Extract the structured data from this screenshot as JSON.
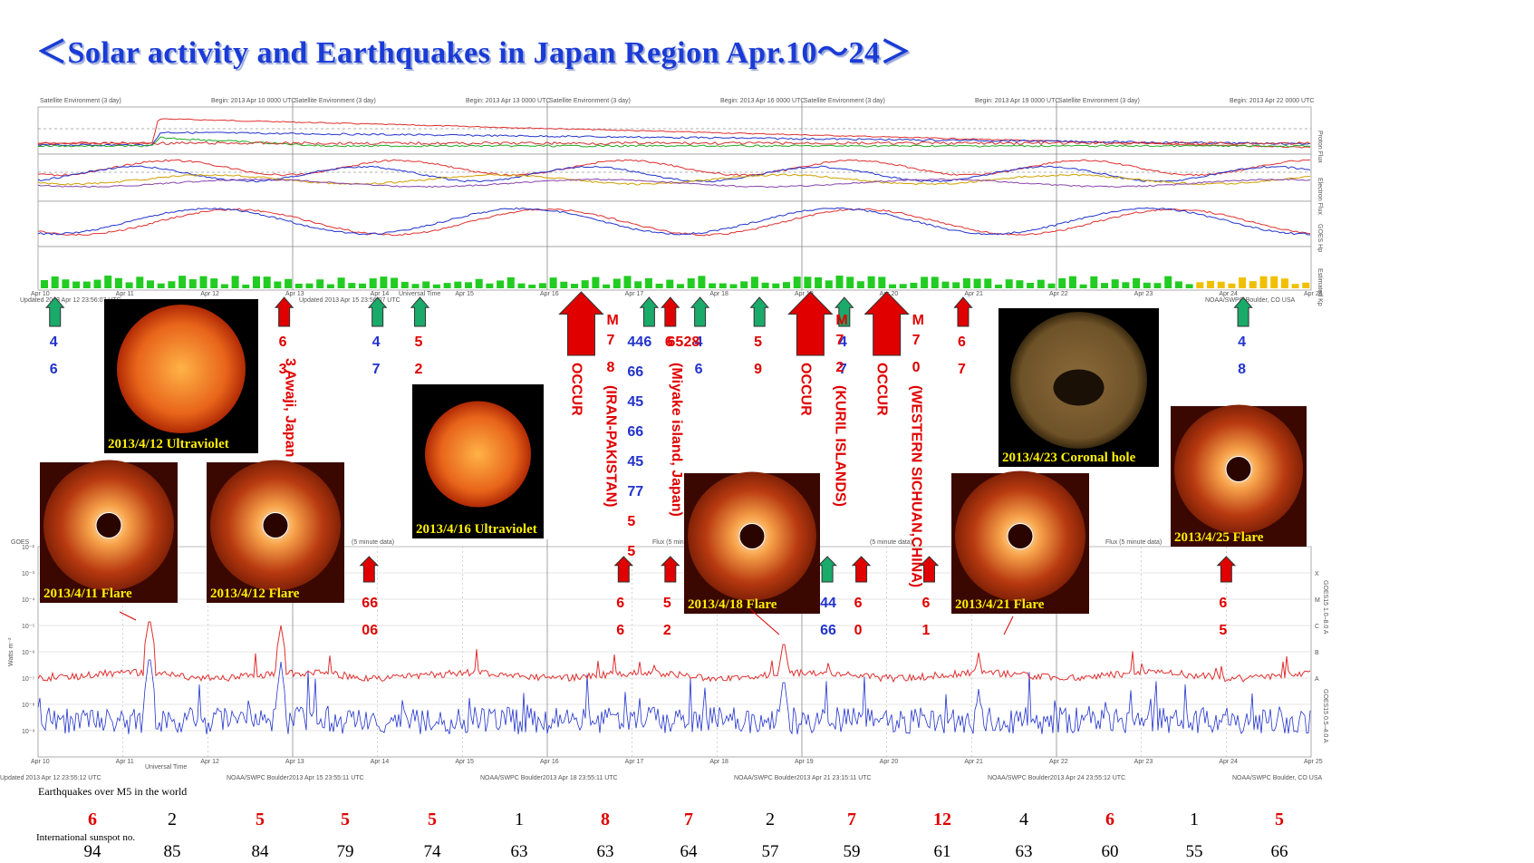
{
  "title": "＜Solar activity and Earthquakes in Japan Region Apr.10～24＞",
  "colors": {
    "blue_text": "#1a3bd6",
    "red": "#e00000",
    "green": "#1aaa6a",
    "blue": "#2233cc",
    "caption": "#ffef00"
  },
  "top_panel": {
    "headers": [
      {
        "left": "Satellite Environment (3 day)",
        "right": "Begin: 2013 Apr 10 0000 UTC"
      },
      {
        "left": "Satellite Environment (3 day)",
        "right": "Begin: 2013 Apr 13 0000 UTC"
      },
      {
        "left": "Satellite Environment (3 day)",
        "right": "Begin: 2013 Apr 16 0000 UTC"
      },
      {
        "left": "Satellite Environment (3 day)",
        "right": "Begin: 2013 Apr 19 0000 UTC"
      },
      {
        "left": "Satellite Environment (3 day)",
        "right": "Begin: 2013 Apr 22 0000 UTC"
      }
    ],
    "day_ticks": [
      "Apr 10",
      "Apr 11",
      "Apr 12",
      "Apr 13",
      "Apr 14",
      "Apr 15",
      "Apr 16",
      "Apr 17",
      "Apr 18",
      "Apr 19",
      "Apr 20",
      "Apr 21",
      "Apr 22",
      "Apr 23",
      "Apr 24",
      "Apr 25"
    ],
    "right_labels": [
      "Proton Flux",
      "Electron Flux",
      "GOES Hp",
      "Estimated Kp"
    ],
    "updated": [
      "Updated 2013 Apr 12 23:56:07 UTC",
      "Updated 2013 Apr 15 23:56:07 UTC",
      "NOAA/SWPC Boulder, CO USA"
    ],
    "universal_time": "Universal Time"
  },
  "xray_panel": {
    "header_left": "GOES",
    "header_mid": [
      "(5 minute data)",
      "Flux (5 minute data)",
      "(5 minute data)",
      "Flux (5 minute data)"
    ],
    "header_right": "Begin: 2013 Apr 22 0000 UTC",
    "ylabel": "Watts m⁻²",
    "yticks": [
      "10⁻²",
      "10⁻³",
      "10⁻⁴",
      "10⁻⁵",
      "10⁻⁶",
      "10⁻⁷",
      "10⁻⁸",
      "10⁻⁹"
    ],
    "class_labels": [
      "X",
      "M",
      "C",
      "B",
      "A"
    ],
    "right_red": "GOES15 1.0–8.0 A",
    "right_blue": "GOES15 0.5–4.0 A",
    "updated": [
      "Updated 2013 Apr 12 23:55:12 UTC",
      "NOAA/SWPC Boulder2013 Apr 15 23:55:11 UTC",
      "NOAA/SWPC Boulder2013 Apr 18 23:55:11 UTC",
      "NOAA/SWPC Boulder2013 Apr 21 23:15:11 UTC",
      "NOAA/SWPC Boulder2013 Apr 24 23:55:12 UTC",
      "NOAA/SWPC Boulder, CO USA"
    ]
  },
  "arrows_upper": [
    {
      "day": 10.2,
      "color": "green",
      "top": "4",
      "bot": "6",
      "textcolor": "blue"
    },
    {
      "day": 12.9,
      "color": "red",
      "top": "6",
      "bot": "3",
      "textcolor": "red"
    },
    {
      "day": 14.0,
      "color": "green",
      "top": "4",
      "bot": "7",
      "textcolor": "blue"
    },
    {
      "day": 14.5,
      "color": "green",
      "top": "5",
      "bot": "2",
      "textcolor": "red"
    },
    {
      "day": 17.2,
      "color": "green",
      "top": "6",
      "bot": "",
      "textcolor": "blue"
    },
    {
      "day": 17.45,
      "color": "red",
      "top": "6",
      "bot": "",
      "textcolor": "red"
    },
    {
      "day": 17.8,
      "color": "green",
      "top": "4",
      "bot": "6",
      "textcolor": "blue"
    },
    {
      "day": 18.5,
      "color": "green",
      "top": "5",
      "bot": "9",
      "textcolor": "red"
    },
    {
      "day": 19.5,
      "color": "green",
      "top": "4",
      "bot": "7",
      "textcolor": "blue"
    },
    {
      "day": 20.9,
      "color": "red",
      "top": "6",
      "bot": "7",
      "textcolor": "red"
    },
    {
      "day": 24.2,
      "color": "green",
      "top": "4",
      "bot": "8",
      "textcolor": "blue"
    }
  ],
  "big_arrows": [
    {
      "day": 16.4,
      "mag": "M7",
      "num": "8",
      "place": "(IRAN-PAKISTAN)"
    },
    {
      "day": 19.1,
      "mag": "M7",
      "num": "2",
      "place": "(KURIL ISLANDS)"
    },
    {
      "day": 20.0,
      "mag": "M7",
      "num": "0",
      "place": "(WESTERN SICHUAN,CHINA)"
    }
  ],
  "occur_label": "OCCUR",
  "awaji": "3 Awaji, Japan",
  "miyake": "(Miyake island, Japan)",
  "column_17": [
    "44",
    "66",
    "45",
    "66",
    "45",
    "77",
    "5",
    "5"
  ],
  "column_17b": [
    "65",
    "28"
  ],
  "arrows_lower": [
    {
      "day": 13.9,
      "top": "66",
      "bot": "06",
      "color": "red"
    },
    {
      "day": 16.9,
      "top": "6",
      "bot": "6",
      "color": "red"
    },
    {
      "day": 17.45,
      "top": "5",
      "bot": "2",
      "color": "red"
    },
    {
      "day": 19.3,
      "top": "44",
      "bot": "66",
      "color": "green"
    },
    {
      "day": 19.7,
      "top": "6",
      "bot": "0",
      "color": "red"
    },
    {
      "day": 20.5,
      "top": "6",
      "bot": "1",
      "color": "red"
    },
    {
      "day": 24.0,
      "top": "6",
      "bot": "5",
      "color": "red"
    }
  ],
  "images": [
    {
      "caption": "2013/4/12 Ultraviolet",
      "kind": "sun"
    },
    {
      "caption": "2013/4/16 Ultraviolet",
      "kind": "sun"
    },
    {
      "caption": "2013/4/23 Coronal hole",
      "kind": "hole"
    },
    {
      "caption": "2013/4/11 Flare",
      "kind": "flare"
    },
    {
      "caption": "2013/4/12 Flare",
      "kind": "flare"
    },
    {
      "caption": "2013/4/18 Flare",
      "kind": "flare"
    },
    {
      "caption": "2013/4/21 Flare",
      "kind": "flare"
    },
    {
      "caption": "2013/4/25 Flare",
      "kind": "flare"
    }
  ],
  "bottom": {
    "eq_label": "Earthquakes over M5 in the world",
    "ss_label": "International sunspot no.",
    "eq_counts": [
      6,
      2,
      5,
      5,
      5,
      1,
      8,
      7,
      2,
      7,
      12,
      4,
      6,
      1,
      5
    ],
    "eq_red": [
      true,
      false,
      true,
      true,
      true,
      false,
      true,
      true,
      false,
      true,
      true,
      false,
      true,
      false,
      true
    ],
    "sunspots": [
      94,
      85,
      84,
      79,
      74,
      63,
      63,
      64,
      57,
      59,
      61,
      63,
      60,
      55,
      66
    ]
  },
  "chart_data": {
    "type": "table",
    "title": "＜Solar activity and Earthquakes in Japan Region Apr.10～24＞",
    "categories": [
      "Apr 10",
      "Apr 11",
      "Apr 12",
      "Apr 13",
      "Apr 14",
      "Apr 15",
      "Apr 16",
      "Apr 17",
      "Apr 18",
      "Apr 19",
      "Apr 20",
      "Apr 21",
      "Apr 22",
      "Apr 23",
      "Apr 24"
    ],
    "series": [
      {
        "name": "Earthquakes over M5 in the world",
        "values": [
          6,
          2,
          5,
          5,
          5,
          1,
          8,
          7,
          2,
          7,
          12,
          4,
          6,
          1,
          5
        ]
      },
      {
        "name": "International sunspot no.",
        "values": [
          94,
          85,
          84,
          79,
          74,
          63,
          63,
          64,
          57,
          59,
          61,
          63,
          60,
          55,
          66
        ]
      }
    ]
  }
}
